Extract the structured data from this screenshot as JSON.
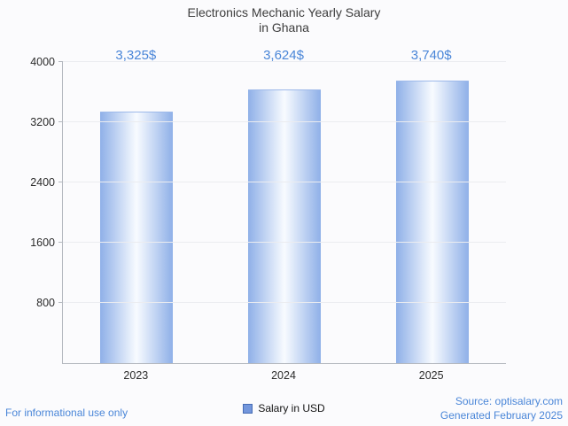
{
  "title": {
    "line1": "Electronics Mechanic Yearly Salary",
    "line2": "in Ghana"
  },
  "chart_data": {
    "type": "bar",
    "title": "Electronics Mechanic Yearly Salary in Ghana",
    "categories": [
      "2023",
      "2024",
      "2025"
    ],
    "values": [
      3325,
      3624,
      3740
    ],
    "value_labels": [
      "3,325$",
      "3,624$",
      "3,740$"
    ],
    "xlabel": "",
    "ylabel": "",
    "ylim": [
      0,
      4000
    ],
    "yticks": [
      800,
      1600,
      2400,
      3200,
      4000
    ],
    "grid": true,
    "legend": [
      "Salary in USD"
    ],
    "legend_position": "bottom",
    "bar_color_edge": "#8fb0e8",
    "bar_color_center": "#f8fbff"
  },
  "legend": {
    "label": "Salary in USD",
    "swatch_color": "#7396dc"
  },
  "footer": {
    "disclaimer": "For informational use only",
    "source": "Source: optisalary.com",
    "generated": "Generated February 2025"
  },
  "colors": {
    "accent": "#4a86d8",
    "title_text": "#3d3d3d",
    "axis": "#b4b8bf",
    "gridline": "#ebecf0"
  }
}
